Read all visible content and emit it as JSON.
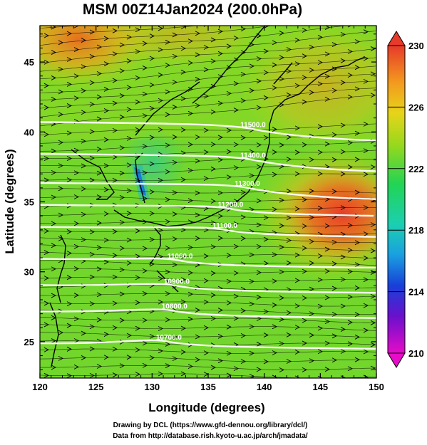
{
  "chart_data": {
    "type": "heatmap",
    "title": "MSM 00Z14Jan2024 (200.0hPa)",
    "xlabel": "Longitude (degrees)",
    "ylabel": "Latitude  (degrees)",
    "xlim": [
      120,
      150
    ],
    "ylim": [
      22.4,
      47.6
    ],
    "x_ticks": [
      "120",
      "125",
      "130",
      "135",
      "140",
      "145",
      "150"
    ],
    "y_ticks": [
      "25",
      "30",
      "35",
      "40",
      "45"
    ],
    "colorbar": {
      "min": 210,
      "max": 230,
      "ticks": [
        "210",
        "214",
        "218",
        "222",
        "226",
        "230"
      ]
    },
    "contour_labels": [
      {
        "text": "11500.0",
        "lon": 139.0,
        "lat": 40.2
      },
      {
        "text": "11400.0",
        "lon": 139.0,
        "lat": 38.0
      },
      {
        "text": "11300.0",
        "lon": 138.5,
        "lat": 36.0
      },
      {
        "text": "11200.0",
        "lon": 137.0,
        "lat": 34.5
      },
      {
        "text": "11100.0",
        "lon": 136.5,
        "lat": 33.0
      },
      {
        "text": "11000.0",
        "lon": 132.5,
        "lat": 30.8
      },
      {
        "text": "10900.0",
        "lon": 132.2,
        "lat": 29.0
      },
      {
        "text": "10800.0",
        "lon": 132.0,
        "lat": 27.2
      },
      {
        "text": "10700.0",
        "lon": 131.5,
        "lat": 25.0
      }
    ]
  },
  "credits": {
    "line1": "Drawing by DCL (https://www.gfd-dennou.org/library/dcl/)",
    "line2": "Data from http://database.rish.kyoto-u.ac.jp/arch/jmadata/"
  }
}
